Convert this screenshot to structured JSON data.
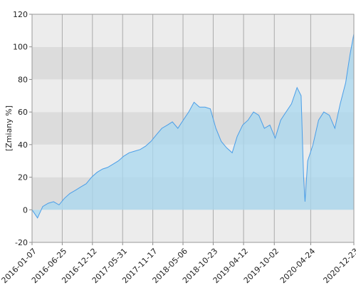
{
  "chart_data": {
    "type": "area",
    "ylabel": "[Zmiany %]",
    "x": [
      "2016-01-07",
      "2016-02-07",
      "2016-03-07",
      "2016-04-07",
      "2016-05-07",
      "2016-06-07",
      "2016-07-07",
      "2016-08-07",
      "2016-09-07",
      "2016-10-07",
      "2016-11-07",
      "2016-12-07",
      "2017-01-07",
      "2017-02-07",
      "2017-03-07",
      "2017-04-07",
      "2017-05-07",
      "2017-06-07",
      "2017-07-07",
      "2017-08-07",
      "2017-09-07",
      "2017-10-07",
      "2017-11-07",
      "2017-12-07",
      "2018-01-07",
      "2018-02-07",
      "2018-03-07",
      "2018-04-07",
      "2018-05-07",
      "2018-06-07",
      "2018-07-07",
      "2018-08-07",
      "2018-09-07",
      "2018-10-07",
      "2018-11-07",
      "2018-12-07",
      "2019-01-07",
      "2019-02-07",
      "2019-03-07",
      "2019-04-07",
      "2019-05-07",
      "2019-06-07",
      "2019-07-07",
      "2019-08-07",
      "2019-09-07",
      "2019-10-07",
      "2019-11-07",
      "2019-12-07",
      "2020-01-07",
      "2020-02-07",
      "2020-03-01",
      "2020-03-15",
      "2020-03-23",
      "2020-04-07",
      "2020-05-07",
      "2020-06-07",
      "2020-07-07",
      "2020-08-07",
      "2020-09-07",
      "2020-10-07",
      "2020-11-07",
      "2020-12-01",
      "2020-12-23"
    ],
    "series": [
      {
        "name": "Zmiany",
        "color": "#4a9ee8",
        "fill": "#a8d8f0",
        "values": [
          0,
          -5,
          2,
          4,
          5,
          3,
          7,
          10,
          12,
          14,
          16,
          20,
          23,
          25,
          26,
          28,
          30,
          33,
          35,
          36,
          37,
          39,
          42,
          46,
          50,
          52,
          54,
          50,
          55,
          60,
          66,
          63,
          63,
          62,
          50,
          42,
          38,
          35,
          45,
          52,
          55,
          60,
          58,
          50,
          52,
          44,
          55,
          60,
          65,
          75,
          70,
          20,
          5,
          30,
          40,
          55,
          60,
          58,
          50,
          65,
          78,
          95,
          108
        ]
      }
    ],
    "xlim": [
      "2016-01-07",
      "2020-12-23"
    ],
    "xticks": [
      "2016-01-07",
      "2016-06-25",
      "2016-12-12",
      "2017-05-31",
      "2017-11-17",
      "2018-05-06",
      "2018-10-23",
      "2019-04-12",
      "2019-10-02",
      "2020-04-24",
      "2020-12-23"
    ],
    "ylim": [
      -20,
      120
    ],
    "yticks": [
      -20,
      0,
      20,
      40,
      60,
      80,
      100,
      120
    ],
    "grid": true
  }
}
